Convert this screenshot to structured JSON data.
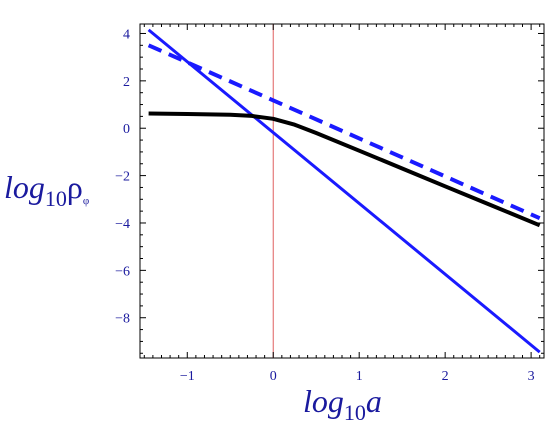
{
  "chart_data": {
    "type": "line",
    "xlabel": {
      "prefix": "log",
      "sub": "10",
      "var": "a"
    },
    "ylabel": {
      "prefix": "log",
      "sub": "10",
      "var": "ρ",
      "varsub": "φ"
    },
    "xlim": [
      -1.55,
      3.15
    ],
    "ylim": [
      -9.7,
      4.4
    ],
    "xticks": [
      {
        "v": -1,
        "label": "−1"
      },
      {
        "v": 0,
        "label": "0"
      },
      {
        "v": 1,
        "label": "1"
      },
      {
        "v": 2,
        "label": "2"
      },
      {
        "v": 3,
        "label": "3"
      }
    ],
    "yticks": [
      {
        "v": 4,
        "label": "4"
      },
      {
        "v": 2,
        "label": "2"
      },
      {
        "v": 0,
        "label": "0"
      },
      {
        "v": -2,
        "label": "−2"
      },
      {
        "v": -4,
        "label": "−4"
      },
      {
        "v": -6,
        "label": "−6"
      },
      {
        "v": -8,
        "label": "−8"
      }
    ],
    "vline": {
      "x": 0,
      "color": "#e06060"
    },
    "series": [
      {
        "style": "solid",
        "color": "#1a1aff",
        "width": 3,
        "x": [
          -1.45,
          3.1
        ],
        "y": [
          4.15,
          -9.45
        ]
      },
      {
        "style": "dashed",
        "color": "#1a1aff",
        "width": 4,
        "x": [
          -1.45,
          3.1
        ],
        "y": [
          3.5,
          -3.8
        ]
      },
      {
        "style": "solid",
        "color": "#000000",
        "width": 4,
        "x": [
          -1.45,
          -1.0,
          -0.5,
          -0.25,
          0.0,
          0.25,
          0.5,
          1.0,
          1.5,
          2.0,
          2.5,
          3.1
        ],
        "y": [
          0.62,
          0.6,
          0.57,
          0.52,
          0.4,
          0.15,
          -0.2,
          -0.95,
          -1.7,
          -2.45,
          -3.2,
          -4.1
        ]
      }
    ]
  }
}
